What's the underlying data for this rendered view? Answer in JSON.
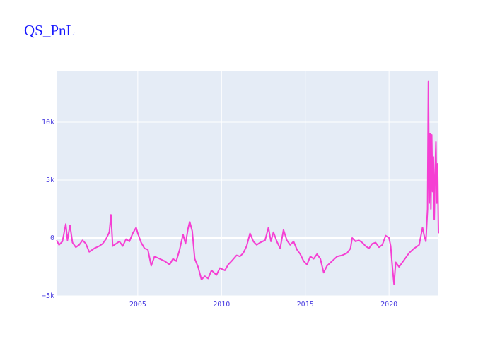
{
  "chart_data": {
    "type": "line",
    "title": "QS_PnL",
    "series": [
      {
        "name": "QS_PnL",
        "color": "#f53fd3",
        "x": [
          2000.15,
          2000.3,
          2000.5,
          2000.7,
          2000.8,
          2000.95,
          2001.1,
          2001.3,
          2001.5,
          2001.7,
          2001.9,
          2002.1,
          2002.4,
          2002.7,
          2002.9,
          2003.1,
          2003.3,
          2003.4,
          2003.5,
          2003.7,
          2003.9,
          2004.1,
          2004.3,
          2004.5,
          2004.7,
          2004.9,
          2005.0,
          2005.2,
          2005.4,
          2005.6,
          2005.8,
          2006.0,
          2006.3,
          2006.6,
          2006.9,
          2007.1,
          2007.3,
          2007.5,
          2007.7,
          2007.85,
          2008.0,
          2008.1,
          2008.25,
          2008.4,
          2008.6,
          2008.8,
          2009.0,
          2009.2,
          2009.4,
          2009.7,
          2009.9,
          2010.2,
          2010.4,
          2010.6,
          2010.9,
          2011.1,
          2011.3,
          2011.5,
          2011.7,
          2011.9,
          2012.1,
          2012.3,
          2012.6,
          2012.8,
          2012.95,
          2013.1,
          2013.3,
          2013.5,
          2013.7,
          2013.9,
          2014.1,
          2014.3,
          2014.5,
          2014.7,
          2014.9,
          2015.1,
          2015.3,
          2015.5,
          2015.7,
          2015.9,
          2016.1,
          2016.3,
          2016.6,
          2016.9,
          2017.2,
          2017.5,
          2017.7,
          2017.8,
          2018.0,
          2018.2,
          2018.4,
          2018.6,
          2018.8,
          2019.0,
          2019.2,
          2019.4,
          2019.6,
          2019.8,
          2020.0,
          2020.1,
          2020.2,
          2020.3,
          2020.4,
          2020.6,
          2020.9,
          2021.2,
          2021.5,
          2021.8,
          2022.0,
          2022.1,
          2022.2,
          2022.3,
          2022.35,
          2022.4,
          2022.45,
          2022.5,
          2022.55,
          2022.6,
          2022.65,
          2022.7,
          2022.75,
          2022.8,
          2022.85,
          2022.9,
          2022.95
        ],
        "values": [
          -200,
          -600,
          -300,
          1200,
          -200,
          1100,
          -400,
          -800,
          -600,
          -200,
          -500,
          -1200,
          -900,
          -700,
          -500,
          -100,
          500,
          2000,
          -700,
          -500,
          -300,
          -700,
          -100,
          -300,
          400,
          900,
          400,
          -400,
          -900,
          -1000,
          -2400,
          -1600,
          -1800,
          -2000,
          -2300,
          -1800,
          -2000,
          -1000,
          300,
          -500,
          800,
          1400,
          600,
          -1800,
          -2500,
          -3600,
          -3300,
          -3500,
          -2800,
          -3200,
          -2600,
          -2800,
          -2300,
          -2000,
          -1500,
          -1600,
          -1300,
          -700,
          400,
          -300,
          -600,
          -400,
          -200,
          900,
          -300,
          500,
          -300,
          -900,
          700,
          -200,
          -600,
          -300,
          -1000,
          -1400,
          -2000,
          -2300,
          -1600,
          -1800,
          -1400,
          -1800,
          -3000,
          -2400,
          -2000,
          -1600,
          -1500,
          -1300,
          -900,
          0,
          -300,
          -200,
          -400,
          -700,
          -900,
          -500,
          -400,
          -800,
          -600,
          200,
          0,
          -700,
          -2500,
          -4000,
          -2100,
          -2500,
          -1900,
          -1300,
          -900,
          -600,
          900,
          200,
          -300,
          2500,
          13500,
          3000,
          9000,
          2500,
          8900,
          4000,
          7000,
          1600,
          5500,
          8300,
          3000,
          6400,
          400
        ]
      }
    ],
    "xlim": [
      2000.15,
      2022.95
    ],
    "xticks": [
      2005,
      2010,
      2015,
      2020
    ],
    "ylim": [
      -5000,
      14450
    ],
    "yticks": [
      {
        "value": -5000,
        "label": "−5k"
      },
      0,
      {
        "value": 5000,
        "label": "5k"
      },
      {
        "value": 10000,
        "label": "10k"
      }
    ],
    "grid": true
  }
}
